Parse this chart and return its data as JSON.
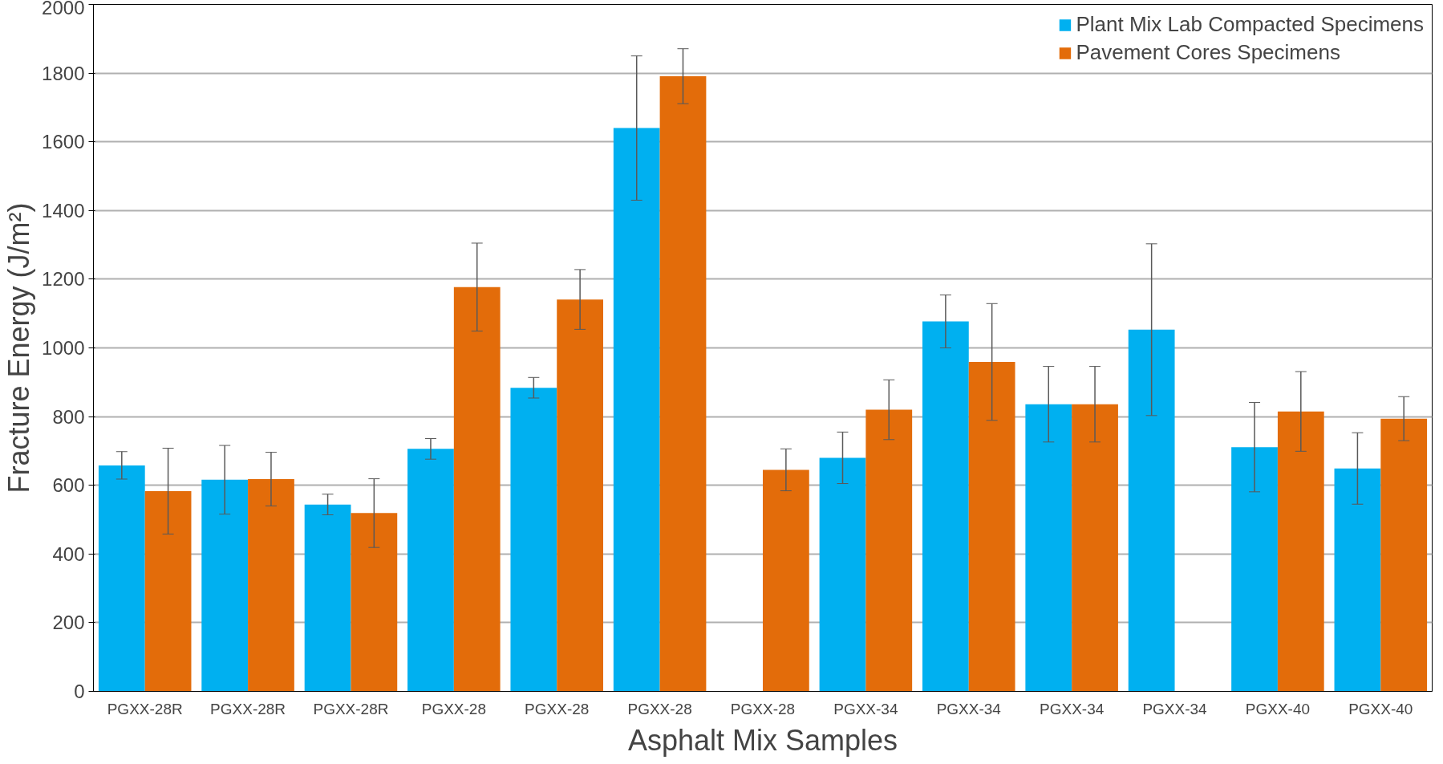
{
  "chart_data": {
    "type": "bar",
    "xlabel": "Asphalt Mix Samples",
    "ylabel": "Fracture Energy (J/m²)",
    "categories": [
      "PGXX-28R",
      "PGXX-28R",
      "PGXX-28R",
      "PGXX-28",
      "PGXX-28",
      "PGXX-28",
      "PGXX-28",
      "PGXX-34",
      "PGXX-34",
      "PGXX-34",
      "PGXX-34",
      "PGXX-40",
      "PGXX-40"
    ],
    "series": [
      {
        "name": "Plant Mix Lab Compacted Specimens",
        "color": "#00b0f0",
        "values": [
          658,
          616,
          544,
          706,
          884,
          1640,
          null,
          680,
          1077,
          836,
          1053,
          711,
          649
        ],
        "errors": [
          40,
          100,
          30,
          30,
          30,
          210,
          null,
          75,
          77,
          110,
          250,
          130,
          104
        ]
      },
      {
        "name": "Pavement Cores Specimens",
        "color": "#e36c0a",
        "values": [
          583,
          618,
          519,
          1177,
          1141,
          1791,
          645,
          820,
          959,
          836,
          null,
          815,
          794
        ],
        "errors": [
          125,
          78,
          100,
          128,
          87,
          80,
          61,
          87,
          170,
          110,
          null,
          116,
          64
        ]
      }
    ],
    "ylim": [
      0,
      2000
    ],
    "yticks": [
      0,
      200,
      400,
      600,
      800,
      1000,
      1200,
      1400,
      1600,
      1800,
      2000
    ],
    "grid": "y",
    "legend": "top right"
  }
}
